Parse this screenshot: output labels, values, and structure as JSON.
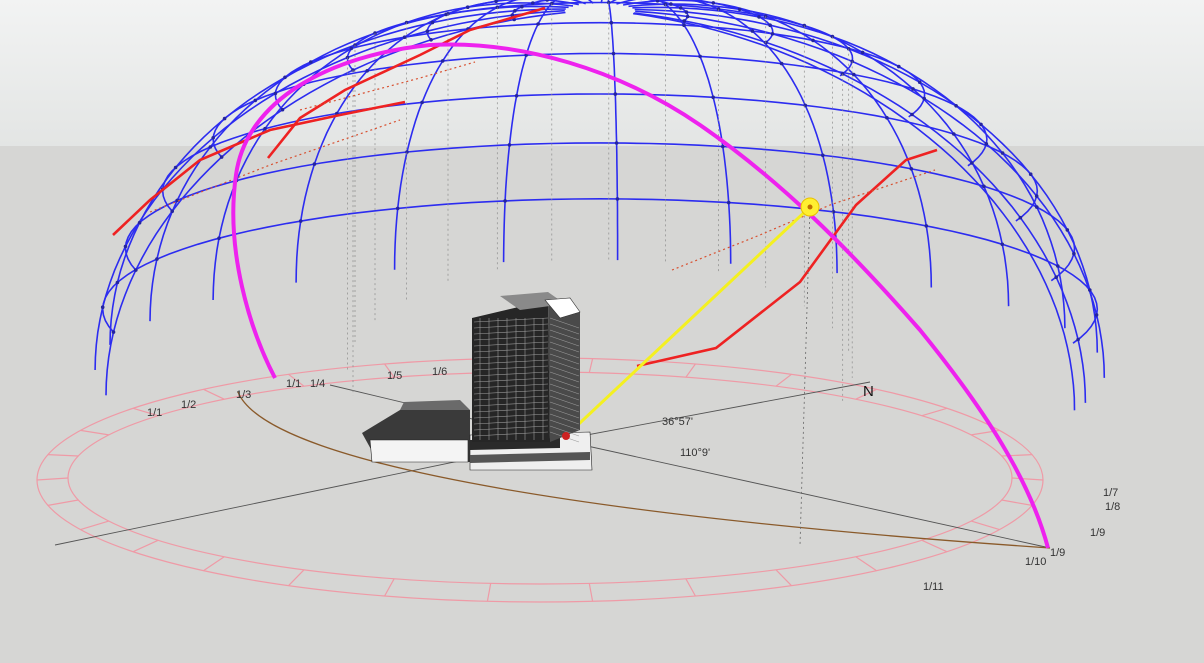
{
  "colors": {
    "sky_top": "#f0f1f1",
    "sky_bottom": "#e4e6e5",
    "ground": "#d6d6d4",
    "dome_grid": "#2c2cf0",
    "dome_vertex": "#2424a0",
    "sun_path_magenta": "#ee22ee",
    "hour_line_red": "#ee2222",
    "sun_ray": "#f4f020",
    "sun": "#ffef30",
    "ring": "#ef9aa6",
    "ground_trace": "#8a5a2a"
  },
  "compass": {
    "north": "N"
  },
  "angles": {
    "altitude": "36°57'",
    "azimuth": "110°9'"
  },
  "month_labels": {
    "jan1": "1/1",
    "jan2": "1/2",
    "jan3": "1/3",
    "cluster_a": "1/1",
    "cluster_b": "1/4",
    "jan5": "1/5",
    "cluster_c": "1/6",
    "jul7": "1/7",
    "aug8": "1/8",
    "sep9": "1/9",
    "oct10": "1/10",
    "nov11": "1/11",
    "dec12": "1/9"
  },
  "icons": {
    "sun": "sun-marker-icon",
    "building": "building-icon",
    "observer": "observer-point-icon"
  }
}
